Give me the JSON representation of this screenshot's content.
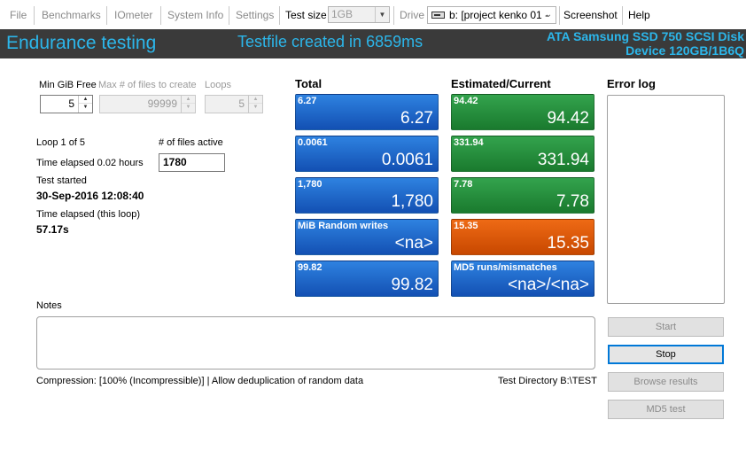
{
  "menu": {
    "file": "File",
    "benchmarks": "Benchmarks",
    "iometer": "IOmeter",
    "system_info": "System Info",
    "settings": "Settings",
    "test_size_label": "Test size",
    "test_size_value": "1GB",
    "drive_label": "Drive",
    "drive_value": "b: [project kenko 01 -",
    "screenshot": "Screenshot",
    "help": "Help"
  },
  "header": {
    "title": "Endurance testing",
    "status": "Testfile created in 6859ms",
    "device_line1": "ATA Samsung SSD 750 SCSI Disk",
    "device_line2": "Device 120GB/1B6Q"
  },
  "controls": {
    "min_gib_free_label": "Min GiB Free",
    "min_gib_free_value": "5",
    "max_files_label": "Max # of files to create",
    "max_files_value": "99999",
    "loops_label": "Loops",
    "loops_value": "5"
  },
  "status": {
    "loop": "Loop 1 of 5",
    "files_active_label": "# of files active",
    "files_active_value": "1780",
    "time_elapsed": "Time elapsed 0.02 hours",
    "test_started_label": "Test started",
    "test_started_value": "30-Sep-2016 12:08:40",
    "loop_elapsed_label": "Time elapsed (this loop)",
    "loop_elapsed_value": "57.17s"
  },
  "columns": {
    "total": "Total",
    "estimated": "Estimated/Current",
    "error_log": "Error log"
  },
  "total_tiles": [
    {
      "title": "6.27",
      "value": "6.27",
      "color": "#1e5fc8"
    },
    {
      "title": "0.0061",
      "value": "0.0061",
      "color": "#1e5fc8"
    },
    {
      "title": "1,780",
      "value": "1,780",
      "color": "#1e5fc8"
    },
    {
      "title": "MiB Random writes",
      "value": "<na>",
      "color": "#1e5fc8"
    },
    {
      "title": "99.82",
      "value": "99.82",
      "color": "#1e5fc8"
    }
  ],
  "estimated_tiles": [
    {
      "title": "94.42",
      "value": "94.42",
      "color": "#25893a"
    },
    {
      "title": "331.94",
      "value": "331.94",
      "color": "#25893a"
    },
    {
      "title": "7.78",
      "value": "7.78",
      "color": "#25893a"
    },
    {
      "title": "15.35",
      "value": "15.35",
      "color": "#e05a10"
    },
    {
      "title": "MD5 runs/mismatches",
      "value": "<na>/<na>",
      "color": "#1e5fc8"
    }
  ],
  "notes_label": "Notes",
  "footer": {
    "compression": "Compression: [100% (Incompressible)] | Allow deduplication of random data",
    "test_directory": "Test Directory B:\\TEST"
  },
  "buttons": {
    "start": "Start",
    "stop": "Stop",
    "browse": "Browse results",
    "md5": "MD5 test"
  }
}
